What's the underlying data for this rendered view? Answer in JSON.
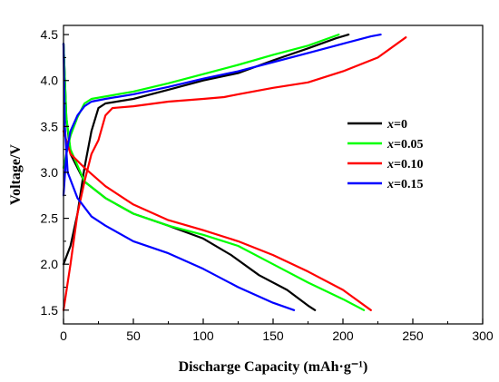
{
  "chart_data": {
    "type": "line",
    "title": "",
    "xlabel": "Discharge Capacity (mAh·g⁻¹)",
    "ylabel": "Voltage/V",
    "xlim": [
      0,
      300
    ],
    "ylim": [
      1.35,
      4.6
    ],
    "x_ticks": [
      "0",
      "50",
      "100",
      "150",
      "200",
      "250",
      "300"
    ],
    "y_ticks": [
      "1.5",
      "2.0",
      "2.5",
      "3.0",
      "3.5",
      "4.0",
      "4.5"
    ],
    "legend_position": "center-right",
    "series": [
      {
        "name": "x=0",
        "legend_prefix": "x",
        "legend_suffix": "=0",
        "color": "#000000",
        "charge": [
          [
            0,
            2.0
          ],
          [
            5,
            2.2
          ],
          [
            10,
            2.55
          ],
          [
            15,
            3.05
          ],
          [
            20,
            3.45
          ],
          [
            25,
            3.7
          ],
          [
            30,
            3.75
          ],
          [
            50,
            3.8
          ],
          [
            75,
            3.9
          ],
          [
            100,
            4.0
          ],
          [
            125,
            4.08
          ],
          [
            150,
            4.22
          ],
          [
            175,
            4.35
          ],
          [
            195,
            4.46
          ],
          [
            204,
            4.5
          ]
        ],
        "discharge": [
          [
            0,
            4.4
          ],
          [
            2,
            3.6
          ],
          [
            5,
            3.2
          ],
          [
            15,
            2.9
          ],
          [
            30,
            2.72
          ],
          [
            50,
            2.55
          ],
          [
            75,
            2.42
          ],
          [
            100,
            2.28
          ],
          [
            120,
            2.1
          ],
          [
            140,
            1.88
          ],
          [
            160,
            1.72
          ],
          [
            175,
            1.55
          ],
          [
            180,
            1.5
          ]
        ]
      },
      {
        "name": "x=0.05",
        "legend_prefix": "x",
        "legend_suffix": "=0.05",
        "color": "#00ff00",
        "charge": [
          [
            0,
            3.05
          ],
          [
            2,
            3.2
          ],
          [
            5,
            3.4
          ],
          [
            10,
            3.6
          ],
          [
            15,
            3.75
          ],
          [
            20,
            3.8
          ],
          [
            50,
            3.88
          ],
          [
            75,
            3.97
          ],
          [
            100,
            4.07
          ],
          [
            125,
            4.17
          ],
          [
            150,
            4.28
          ],
          [
            175,
            4.38
          ],
          [
            197,
            4.5
          ]
        ],
        "discharge": [
          [
            0,
            4.4
          ],
          [
            2,
            3.6
          ],
          [
            5,
            3.25
          ],
          [
            15,
            2.9
          ],
          [
            30,
            2.72
          ],
          [
            50,
            2.55
          ],
          [
            75,
            2.42
          ],
          [
            100,
            2.32
          ],
          [
            125,
            2.2
          ],
          [
            150,
            2.0
          ],
          [
            175,
            1.8
          ],
          [
            200,
            1.62
          ],
          [
            215,
            1.5
          ]
        ]
      },
      {
        "name": "x=0.10",
        "legend_prefix": "x",
        "legend_suffix": "=0.10",
        "color": "#ff0000",
        "charge": [
          [
            0,
            1.5
          ],
          [
            5,
            2.0
          ],
          [
            10,
            2.55
          ],
          [
            15,
            2.9
          ],
          [
            20,
            3.2
          ],
          [
            25,
            3.35
          ],
          [
            30,
            3.62
          ],
          [
            35,
            3.7
          ],
          [
            50,
            3.72
          ],
          [
            75,
            3.77
          ],
          [
            100,
            3.8
          ],
          [
            115,
            3.82
          ],
          [
            125,
            3.85
          ],
          [
            150,
            3.92
          ],
          [
            175,
            3.98
          ],
          [
            200,
            4.1
          ],
          [
            225,
            4.25
          ],
          [
            245,
            4.47
          ]
        ],
        "discharge": [
          [
            0,
            3.45
          ],
          [
            5,
            3.2
          ],
          [
            15,
            3.05
          ],
          [
            30,
            2.85
          ],
          [
            50,
            2.65
          ],
          [
            75,
            2.48
          ],
          [
            100,
            2.37
          ],
          [
            125,
            2.25
          ],
          [
            150,
            2.1
          ],
          [
            175,
            1.92
          ],
          [
            200,
            1.72
          ],
          [
            220,
            1.5
          ]
        ]
      },
      {
        "name": "x=0.15",
        "legend_prefix": "x",
        "legend_suffix": "=0.15",
        "color": "#0000ff",
        "charge": [
          [
            0,
            2.75
          ],
          [
            2,
            3.2
          ],
          [
            5,
            3.45
          ],
          [
            10,
            3.62
          ],
          [
            15,
            3.72
          ],
          [
            20,
            3.77
          ],
          [
            30,
            3.8
          ],
          [
            50,
            3.85
          ],
          [
            75,
            3.93
          ],
          [
            100,
            4.02
          ],
          [
            125,
            4.1
          ],
          [
            150,
            4.2
          ],
          [
            175,
            4.3
          ],
          [
            200,
            4.4
          ],
          [
            220,
            4.48
          ],
          [
            227,
            4.5
          ]
        ],
        "discharge": [
          [
            0,
            4.4
          ],
          [
            1,
            3.5
          ],
          [
            3,
            3.0
          ],
          [
            10,
            2.72
          ],
          [
            20,
            2.52
          ],
          [
            30,
            2.42
          ],
          [
            50,
            2.25
          ],
          [
            75,
            2.12
          ],
          [
            100,
            1.95
          ],
          [
            125,
            1.75
          ],
          [
            150,
            1.58
          ],
          [
            165,
            1.5
          ]
        ]
      }
    ]
  }
}
